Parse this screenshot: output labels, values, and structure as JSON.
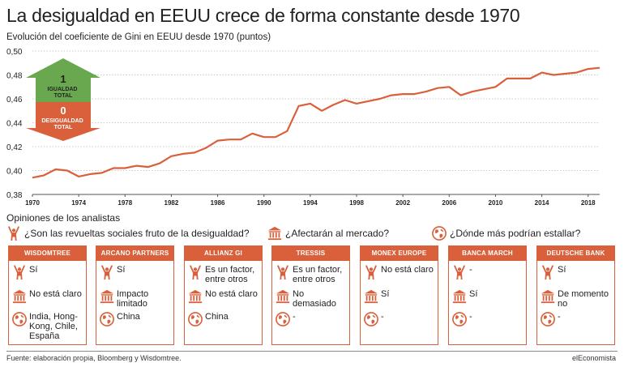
{
  "title": "La desigualdad en EEUU crece de forma constante desde 1970",
  "subtitle": "Evolución del coeficiente de Gini en EEUU desde 1970 (puntos)",
  "colors": {
    "line": "#d9603b",
    "accent": "#d9603b",
    "green": "#6aa84f",
    "grid": "#bbbbbb"
  },
  "legend": {
    "up_value": "1",
    "up_label": "IGUALDAD TOTAL",
    "down_value": "0",
    "down_label": "DESIGUALDAD TOTAL"
  },
  "chart_data": {
    "type": "line",
    "title": "La desigualdad en EEUU crece de forma constante desde 1970",
    "subtitle": "Evolución del coeficiente de Gini en EEUU desde 1970 (puntos)",
    "xlabel": "",
    "ylabel": "",
    "xlim": [
      1970,
      2019
    ],
    "ylim": [
      0.38,
      0.5
    ],
    "grid": true,
    "x_ticks": [
      1970,
      1974,
      1978,
      1982,
      1986,
      1990,
      1994,
      1998,
      2002,
      2006,
      2010,
      2014,
      2018
    ],
    "y_ticks": [
      0.38,
      0.4,
      0.42,
      0.44,
      0.46,
      0.48,
      0.5
    ],
    "y_tick_labels": [
      "0,38",
      "0,40",
      "0,42",
      "0,44",
      "0,46",
      "0,48",
      "0,50"
    ],
    "series": [
      {
        "x": [
          1970,
          1971,
          1972,
          1973,
          1974,
          1975,
          1976,
          1977,
          1978,
          1979,
          1980,
          1981,
          1982,
          1983,
          1984,
          1985,
          1986,
          1987,
          1988,
          1989,
          1990,
          1991,
          1992,
          1993,
          1994,
          1995,
          1996,
          1997,
          1998,
          1999,
          2000,
          2001,
          2002,
          2003,
          2004,
          2005,
          2006,
          2007,
          2008,
          2009,
          2010,
          2011,
          2012,
          2013,
          2014,
          2015,
          2016,
          2017,
          2018,
          2019
        ],
        "values": [
          0.394,
          0.396,
          0.401,
          0.4,
          0.395,
          0.397,
          0.398,
          0.402,
          0.402,
          0.404,
          0.403,
          0.406,
          0.412,
          0.414,
          0.415,
          0.419,
          0.425,
          0.426,
          0.426,
          0.431,
          0.428,
          0.428,
          0.433,
          0.454,
          0.456,
          0.45,
          0.455,
          0.459,
          0.456,
          0.458,
          0.46,
          0.463,
          0.464,
          0.464,
          0.466,
          0.469,
          0.47,
          0.463,
          0.466,
          0.468,
          0.47,
          0.477,
          0.477,
          0.477,
          0.482,
          0.48,
          0.481,
          0.482,
          0.485,
          0.486
        ]
      }
    ]
  },
  "opinions": {
    "title": "Opiniones de los analistas",
    "questions": [
      {
        "icon": "protest-icon",
        "text": "¿Son las revueltas sociales fruto de la desigualdad?"
      },
      {
        "icon": "bank-icon",
        "text": "¿Afectarán al mercado?"
      },
      {
        "icon": "globe-icon",
        "text": "¿Dónde más podrían estallar?"
      }
    ],
    "analysts": [
      {
        "name": "WISDOMTREE",
        "revueltas": "Sí",
        "mercado": "No está claro",
        "donde": "India, Hong-Kong, Chile, España"
      },
      {
        "name": "ARCANO PARTNERS",
        "revueltas": "Sí",
        "mercado": "Impacto limitado",
        "donde": "China"
      },
      {
        "name": "ALLIANZ GI",
        "revueltas": "Es un factor, entre otros",
        "mercado": "No está claro",
        "donde": "China"
      },
      {
        "name": "TRESSIS",
        "revueltas": "Es un factor, entre otros",
        "mercado": "No demasiado",
        "donde": "-"
      },
      {
        "name": "MONEX EUROPE",
        "revueltas": "No está claro",
        "mercado": "Sí",
        "donde": "-"
      },
      {
        "name": "BANCA MARCH",
        "revueltas": "-",
        "mercado": "Sí",
        "donde": "-"
      },
      {
        "name": "DEUTSCHE BANK",
        "revueltas": "Sí",
        "mercado": "De momento no",
        "donde": "-"
      }
    ]
  },
  "footer": {
    "source": "Fuente: elaboración propia, Bloomberg y Wisdomtree.",
    "brand": "elEconomista"
  }
}
